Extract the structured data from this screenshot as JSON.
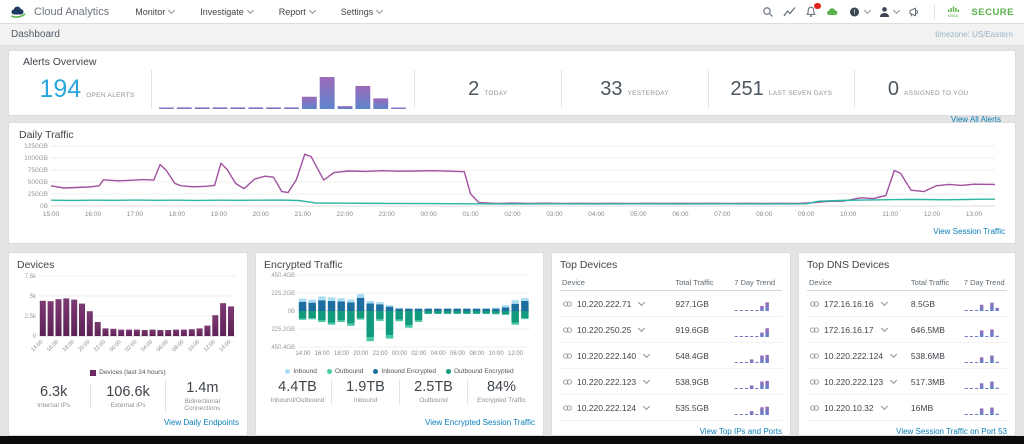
{
  "topbar": {
    "brand": "Cloud Analytics",
    "menus": [
      "Monitor",
      "Investigate",
      "Report",
      "Settings"
    ],
    "secure_label": "SECURE",
    "icon_names": [
      "search-icon",
      "trend-icon",
      "notifications-bell-icon",
      "cloud-status-icon",
      "help-icon",
      "user-icon",
      "announcements-icon"
    ]
  },
  "breadcrumb": {
    "title": "Dashboard",
    "timezone": "timezone: US/Eastern"
  },
  "alerts_overview": {
    "title": "Alerts Overview",
    "open_alerts": {
      "value": "194",
      "label": "OPEN ALERTS"
    },
    "stats": [
      {
        "value": "2",
        "label": "TODAY"
      },
      {
        "value": "33",
        "label": "YESTERDAY"
      },
      {
        "value": "251",
        "label": "LAST SEVEN DAYS"
      },
      {
        "value": "0",
        "label": "ASSIGNED TO YOU"
      }
    ],
    "link": "View All Alerts",
    "trend_bars_relative": [
      4,
      5,
      5,
      5,
      5,
      5,
      5,
      5,
      38,
      100,
      9,
      72,
      33,
      4
    ]
  },
  "daily_traffic": {
    "title": "Daily Traffic",
    "link": "View Session Traffic",
    "chart": {
      "type": "line",
      "y_ticks": [
        "1250GB",
        "1000GB",
        "750GB",
        "500GB",
        "250GB",
        "0B"
      ],
      "ymax_gb": 1250,
      "x_ticks": [
        "15:00",
        "16:00",
        "17:00",
        "18:00",
        "19:00",
        "20:00",
        "21:00",
        "22:00",
        "23:00",
        "00:00",
        "01:00",
        "02:00",
        "03:00",
        "04:00",
        "05:00",
        "06:00",
        "07:00",
        "08:00",
        "09:00",
        "10:00",
        "11:00",
        "12:00",
        "13:00"
      ],
      "x_span_hours": 22.5,
      "series": [
        {
          "name": "session-traffic-purple",
          "color": "#a0519f",
          "points": [
            [
              0,
              420
            ],
            [
              0.3,
              375
            ],
            [
              0.6,
              385
            ],
            [
              0.9,
              395
            ],
            [
              1.15,
              420
            ],
            [
              1.25,
              545
            ],
            [
              1.6,
              525
            ],
            [
              1.9,
              535
            ],
            [
              2.2,
              550
            ],
            [
              2.45,
              540
            ],
            [
              2.6,
              865
            ],
            [
              2.75,
              740
            ],
            [
              2.95,
              470
            ],
            [
              3.1,
              420
            ],
            [
              3.4,
              400
            ],
            [
              3.7,
              410
            ],
            [
              3.9,
              430
            ],
            [
              4.05,
              890
            ],
            [
              4.2,
              760
            ],
            [
              4.4,
              470
            ],
            [
              4.6,
              360
            ],
            [
              4.85,
              560
            ],
            [
              5.1,
              620
            ],
            [
              5.3,
              600
            ],
            [
              5.5,
              300
            ],
            [
              5.65,
              280
            ],
            [
              5.85,
              550
            ],
            [
              6.05,
              1080
            ],
            [
              6.2,
              1030
            ],
            [
              6.5,
              540
            ],
            [
              6.75,
              700
            ],
            [
              7.1,
              730
            ],
            [
              7.5,
              720
            ],
            [
              7.9,
              735
            ],
            [
              8.3,
              725
            ],
            [
              8.7,
              730
            ],
            [
              9.1,
              735
            ],
            [
              9.5,
              725
            ],
            [
              9.85,
              715
            ],
            [
              10,
              250
            ],
            [
              10.2,
              70
            ],
            [
              10.6,
              55
            ],
            [
              11,
              60
            ],
            [
              11.4,
              52
            ],
            [
              11.8,
              58
            ],
            [
              12.2,
              52
            ],
            [
              12.6,
              56
            ],
            [
              13,
              52
            ],
            [
              13.4,
              56
            ],
            [
              13.8,
              52
            ],
            [
              14.2,
              56
            ],
            [
              14.6,
              52
            ],
            [
              15,
              56
            ],
            [
              15.4,
              52
            ],
            [
              15.8,
              56
            ],
            [
              16.2,
              52
            ],
            [
              16.6,
              56
            ],
            [
              17,
              52
            ],
            [
              17.4,
              56
            ],
            [
              17.8,
              54
            ],
            [
              18.2,
              70
            ],
            [
              18.5,
              95
            ],
            [
              18.9,
              105
            ],
            [
              19.3,
              170
            ],
            [
              19.6,
              155
            ],
            [
              19.9,
              220
            ],
            [
              20.1,
              740
            ],
            [
              20.25,
              680
            ],
            [
              20.5,
              330
            ],
            [
              20.8,
              300
            ],
            [
              21.1,
              420
            ],
            [
              21.4,
              450
            ],
            [
              21.7,
              430
            ],
            [
              22,
              455
            ],
            [
              22.5,
              450
            ]
          ]
        },
        {
          "name": "session-traffic-teal",
          "color": "#2cb5a2",
          "points": [
            [
              0,
              120
            ],
            [
              0.5,
              117
            ],
            [
              1,
              121
            ],
            [
              1.5,
              118
            ],
            [
              2,
              122
            ],
            [
              2.5,
              118
            ],
            [
              3,
              120
            ],
            [
              3.5,
              117
            ],
            [
              4,
              121
            ],
            [
              4.5,
              118
            ],
            [
              5,
              120
            ],
            [
              5.5,
              122
            ],
            [
              5.9,
              115
            ],
            [
              6.1,
              90
            ],
            [
              6.3,
              63
            ],
            [
              7,
              58
            ],
            [
              8,
              54
            ],
            [
              9,
              50
            ],
            [
              10,
              45
            ],
            [
              11,
              43
            ],
            [
              12,
              45
            ],
            [
              13,
              43
            ],
            [
              14,
              45
            ],
            [
              15,
              43
            ],
            [
              16,
              45
            ],
            [
              17,
              43
            ],
            [
              18,
              46
            ],
            [
              18.3,
              100
            ],
            [
              18.8,
              115
            ],
            [
              19.3,
              122
            ],
            [
              19.8,
              130
            ],
            [
              20.3,
              138
            ],
            [
              20.8,
              135
            ],
            [
              21.3,
              130
            ],
            [
              21.8,
              136
            ],
            [
              22.2,
              142
            ],
            [
              22.5,
              142
            ]
          ]
        }
      ]
    }
  },
  "devices": {
    "title": "Devices",
    "legend": "Devices (last 24 hours)",
    "legend_color": "#682a5e",
    "chart": {
      "type": "bar",
      "y_ticks": [
        "7.5k",
        "5k",
        "2.5k",
        "0"
      ],
      "ymax": 7500,
      "x_ticks": [
        "14:00",
        "16:00",
        "18:00",
        "20:00",
        "22:00",
        "00:00",
        "02:00",
        "04:00",
        "06:00",
        "08:00",
        "10:00",
        "12:00",
        "14:00"
      ],
      "values": [
        4400,
        4350,
        4600,
        4700,
        4550,
        4050,
        3100,
        1750,
        950,
        900,
        800,
        800,
        800,
        750,
        800,
        750,
        750,
        800,
        800,
        850,
        950,
        1300,
        2600,
        4100,
        3700
      ]
    },
    "stats": [
      {
        "value": "6.3k",
        "label": "Internal IPs"
      },
      {
        "value": "106.6k",
        "label": "External IPs"
      },
      {
        "value": "1.4m",
        "label": "Bidirectional Connections"
      }
    ],
    "link": "View Daily Endpoints"
  },
  "encrypted_traffic": {
    "title": "Encrypted Traffic",
    "chart": {
      "type": "diverging-stacked-bar",
      "y_ticks": [
        "450.4GB",
        "225.2GB",
        "0B",
        "225.2GB",
        "450.4GB"
      ],
      "ymax_gb": 450.4,
      "x_ticks": [
        "14:00",
        "16:00",
        "18:00",
        "20:00",
        "22:00",
        "00:00",
        "02:00",
        "04:00",
        "06:00",
        "08:00",
        "10:00",
        "12:00"
      ],
      "series": [
        {
          "name": "Inbound",
          "color": "#a9dcf1",
          "values": [
            42,
            36,
            46,
            44,
            40,
            36,
            48,
            30,
            26,
            18,
            10,
            10,
            10,
            10,
            10,
            10,
            10,
            10,
            10,
            10,
            12,
            28,
            44,
            38
          ]
        },
        {
          "name": "Outbound",
          "color": "#49c9a6",
          "values": [
            16,
            14,
            20,
            24,
            20,
            26,
            16,
            48,
            18,
            45,
            20,
            30,
            20,
            6,
            6,
            6,
            6,
            6,
            6,
            6,
            8,
            10,
            24,
            14
          ]
        },
        {
          "name": "Inbound Encrypted",
          "color": "#1c6f9f",
          "values": [
            115,
            105,
            135,
            125,
            120,
            110,
            165,
            95,
            85,
            55,
            30,
            28,
            28,
            28,
            28,
            28,
            28,
            28,
            28,
            28,
            30,
            45,
            90,
            125
          ]
        },
        {
          "name": "Outbound Encrypted",
          "color": "#129a7d",
          "values": [
            95,
            90,
            118,
            148,
            118,
            160,
            92,
            330,
            105,
            300,
            108,
            180,
            118,
            32,
            32,
            32,
            32,
            32,
            32,
            32,
            34,
            40,
            148,
            88
          ]
        }
      ]
    },
    "stats": [
      {
        "value": "4.4TB",
        "label": "Inbound/Outbound"
      },
      {
        "value": "1.9TB",
        "label": "Inbound"
      },
      {
        "value": "2.5TB",
        "label": "Outbound"
      },
      {
        "value": "84%",
        "label": "Encrypted Traffic"
      }
    ],
    "link": "View Encrypted Session Traffic"
  },
  "top_devices": {
    "title": "Top Devices",
    "columns": [
      "Device",
      "Total Traffic",
      "7 Day Trend"
    ],
    "rows": [
      {
        "ip": "10.220.222.71",
        "traffic": "927.1GB",
        "trend": [
          5,
          5,
          5,
          5,
          5,
          34,
          58
        ]
      },
      {
        "ip": "10.220.250.25",
        "traffic": "919.6GB",
        "trend": [
          5,
          5,
          5,
          5,
          5,
          30,
          58
        ]
      },
      {
        "ip": "10.220.222.140",
        "traffic": "548.4GB",
        "trend": [
          5,
          5,
          5,
          24,
          5,
          50,
          54
        ]
      },
      {
        "ip": "10.220.222.123",
        "traffic": "538.9GB",
        "trend": [
          5,
          5,
          5,
          24,
          5,
          50,
          54
        ]
      },
      {
        "ip": "10.220.222.124",
        "traffic": "535.5GB",
        "trend": [
          5,
          5,
          5,
          26,
          5,
          52,
          56
        ]
      }
    ],
    "link": "View Top IPs and Ports"
  },
  "top_dns_devices": {
    "title": "Top DNS Devices",
    "columns": [
      "Device",
      "Total Traffic",
      "7 Day Trend"
    ],
    "rows": [
      {
        "ip": "172.16.16.16",
        "traffic": "8.5GB",
        "trend": [
          5,
          5,
          5,
          42,
          5,
          56,
          22
        ]
      },
      {
        "ip": "172.16.16.17",
        "traffic": "646.5MB",
        "trend": [
          5,
          5,
          5,
          44,
          5,
          50,
          8
        ]
      },
      {
        "ip": "10.220.222.124",
        "traffic": "538.6MB",
        "trend": [
          5,
          5,
          5,
          38,
          5,
          50,
          8
        ]
      },
      {
        "ip": "10.220.222.123",
        "traffic": "517.3MB",
        "trend": [
          5,
          5,
          5,
          38,
          5,
          50,
          8
        ]
      },
      {
        "ip": "10.220.10.32",
        "traffic": "16MB",
        "trend": [
          5,
          5,
          5,
          44,
          5,
          50,
          8
        ]
      }
    ],
    "link": "View Session Traffic on Port 53"
  },
  "colors": {
    "accent_blue": "#2aa6dc",
    "link_blue": "#0a7fba",
    "brand_green": "#5cb24a",
    "badge_red": "#e2231a",
    "spark_top": "#9d6ab8",
    "spark_bottom": "#5b85cc"
  }
}
